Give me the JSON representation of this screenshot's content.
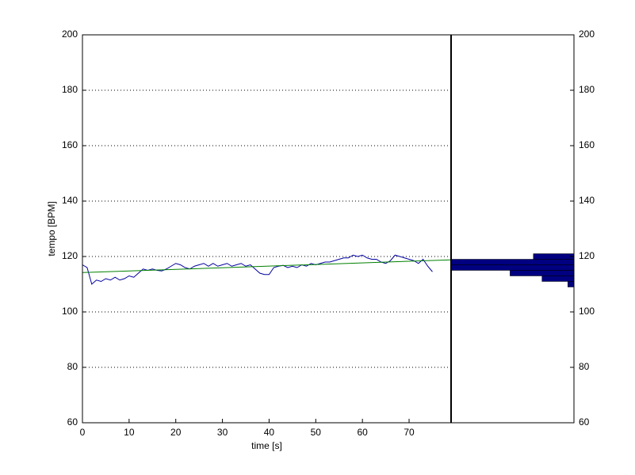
{
  "chart_data": [
    {
      "type": "line",
      "xlabel": "time [s]",
      "ylabel": "tempo [BPM]",
      "xlim": [
        0,
        79
      ],
      "ylim": [
        60,
        200
      ],
      "xticks": [
        0,
        10,
        20,
        30,
        40,
        50,
        60,
        70
      ],
      "yticks": [
        60,
        80,
        100,
        120,
        140,
        160,
        180,
        200
      ],
      "grid": "y",
      "series": [
        {
          "color": "#0000a0",
          "x": [
            0,
            1,
            2,
            3,
            4,
            5,
            6,
            7,
            8,
            9,
            10,
            11,
            12,
            13,
            14,
            15,
            16,
            17,
            18,
            19,
            20,
            21,
            22,
            23,
            24,
            25,
            26,
            27,
            28,
            29,
            30,
            31,
            32,
            33,
            34,
            35,
            36,
            37,
            38,
            39,
            40,
            41,
            42,
            43,
            44,
            45,
            46,
            47,
            48,
            49,
            50,
            51,
            52,
            53,
            54,
            55,
            56,
            57,
            58,
            59,
            60,
            61,
            62,
            63,
            64,
            65,
            66,
            67,
            68,
            69,
            70,
            71,
            72,
            73,
            74,
            75
          ],
          "values": [
            117,
            116,
            110,
            111.5,
            111,
            112,
            111.5,
            112.5,
            111.5,
            112,
            113,
            112.5,
            114,
            115.5,
            115,
            115.5,
            115,
            114.8,
            115.5,
            116.5,
            117.5,
            117,
            116,
            115.5,
            116.5,
            117,
            117.5,
            116.5,
            117.5,
            116.5,
            117,
            117.5,
            116.5,
            117,
            117.5,
            116.5,
            117,
            115.5,
            114,
            113.5,
            113.5,
            116,
            116.5,
            116.8,
            116,
            116.5,
            116,
            117,
            116.5,
            117.5,
            117,
            117.5,
            118,
            118,
            118.5,
            119,
            119.5,
            119.5,
            120.5,
            120,
            120.5,
            119.5,
            119,
            119,
            118,
            117.5,
            118.5,
            120.5,
            120,
            119.5,
            119,
            118.5,
            117.5,
            119,
            116.5,
            114.5
          ]
        },
        {
          "color": "#008000",
          "x": [
            0,
            79
          ],
          "values": [
            114.2,
            118.8
          ]
        }
      ]
    },
    {
      "type": "histogram",
      "orientation": "horizontal",
      "x_direction": "reverse",
      "bins": [
        109,
        111,
        113,
        115,
        117,
        119,
        121
      ],
      "counts": [
        5,
        26,
        52,
        100,
        100,
        33
      ],
      "color": "#000080",
      "xlim": [
        0,
        100
      ],
      "ylim": [
        60,
        200
      ],
      "yticks": [
        60,
        80,
        100,
        120,
        140,
        160,
        180,
        200
      ]
    }
  ]
}
